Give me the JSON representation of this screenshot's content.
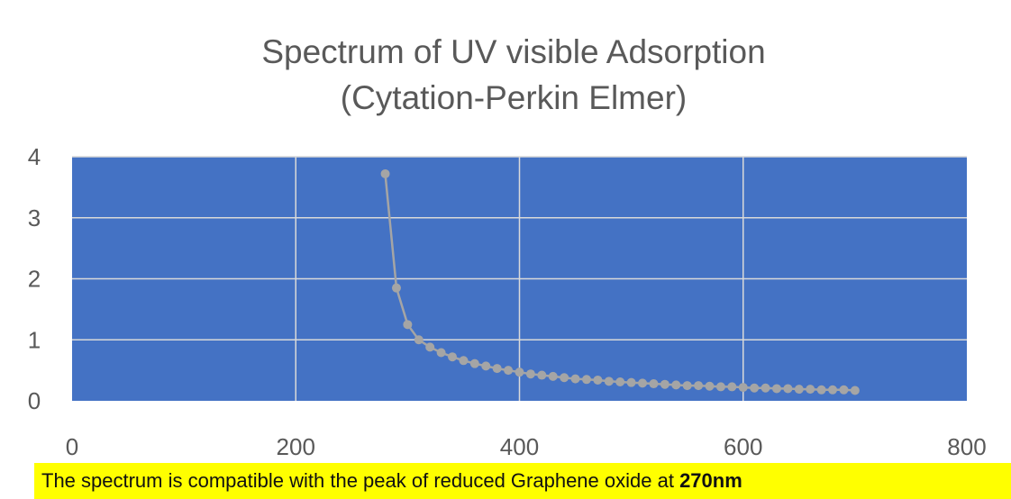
{
  "chart_data": {
    "type": "scatter",
    "title_line1": "Spectrum of UV visible Adsorption",
    "title_line2": "(Cytation-Perkin Elmer)",
    "xlabel": "",
    "ylabel": "",
    "xlim": [
      0,
      800
    ],
    "ylim": [
      0,
      4
    ],
    "x_ticks": [
      "0",
      "200",
      "400",
      "600",
      "800"
    ],
    "y_ticks": [
      "0",
      "1",
      "2",
      "3",
      "4"
    ],
    "grid": true,
    "legend": "none",
    "series": [
      {
        "x": [
          280,
          290,
          300,
          310,
          320,
          330,
          340,
          350,
          360,
          370,
          380,
          390,
          400,
          410,
          420,
          430,
          440,
          450,
          460,
          470,
          480,
          490,
          500,
          510,
          520,
          530,
          540,
          550,
          560,
          570,
          580,
          590,
          600,
          610,
          620,
          630,
          640,
          650,
          660,
          670,
          680,
          690,
          700
        ],
        "y": [
          3.72,
          1.85,
          1.25,
          1.0,
          0.88,
          0.79,
          0.72,
          0.66,
          0.61,
          0.57,
          0.53,
          0.5,
          0.47,
          0.44,
          0.42,
          0.4,
          0.38,
          0.36,
          0.35,
          0.34,
          0.32,
          0.31,
          0.3,
          0.29,
          0.28,
          0.27,
          0.26,
          0.25,
          0.25,
          0.24,
          0.23,
          0.23,
          0.22,
          0.21,
          0.21,
          0.2,
          0.2,
          0.19,
          0.19,
          0.18,
          0.18,
          0.18,
          0.17
        ]
      }
    ]
  },
  "caption": {
    "text": "The spectrum is compatible with the peak of reduced Graphene oxide at ",
    "bold": "270nm"
  },
  "colors": {
    "plot_area": "#4472c4",
    "gridline": "#d9d9d9",
    "series": "#a5a5a5",
    "title": "#595959",
    "caption_highlight": "#ffff00"
  }
}
